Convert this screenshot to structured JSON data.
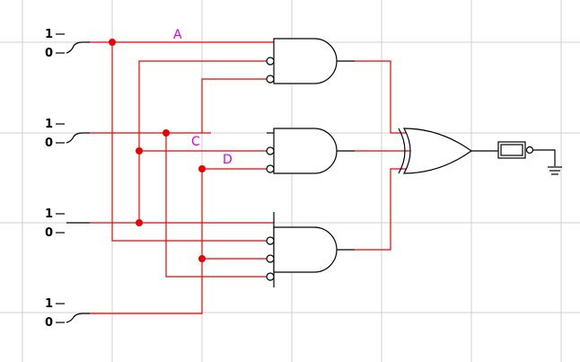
{
  "canvas": {
    "background": "#ffffff",
    "grid_color": "#d0d0d0"
  },
  "colors": {
    "wire": "#ee0000",
    "label": "#e000e0",
    "gate": "#000000"
  },
  "switches": [
    {
      "high": "1",
      "low": "0"
    },
    {
      "high": "1",
      "low": "0"
    },
    {
      "high": "1",
      "low": "0"
    },
    {
      "high": "1",
      "low": "0"
    }
  ],
  "net_labels": {
    "a": "A",
    "c": "C",
    "d": "D"
  },
  "gates": [
    {
      "type": "AND",
      "inputs": 3
    },
    {
      "type": "AND",
      "inputs": 3
    },
    {
      "type": "AND",
      "inputs": 4
    },
    {
      "type": "OR",
      "inputs": 3
    }
  ],
  "output": {
    "type": "probe",
    "ground": true
  }
}
